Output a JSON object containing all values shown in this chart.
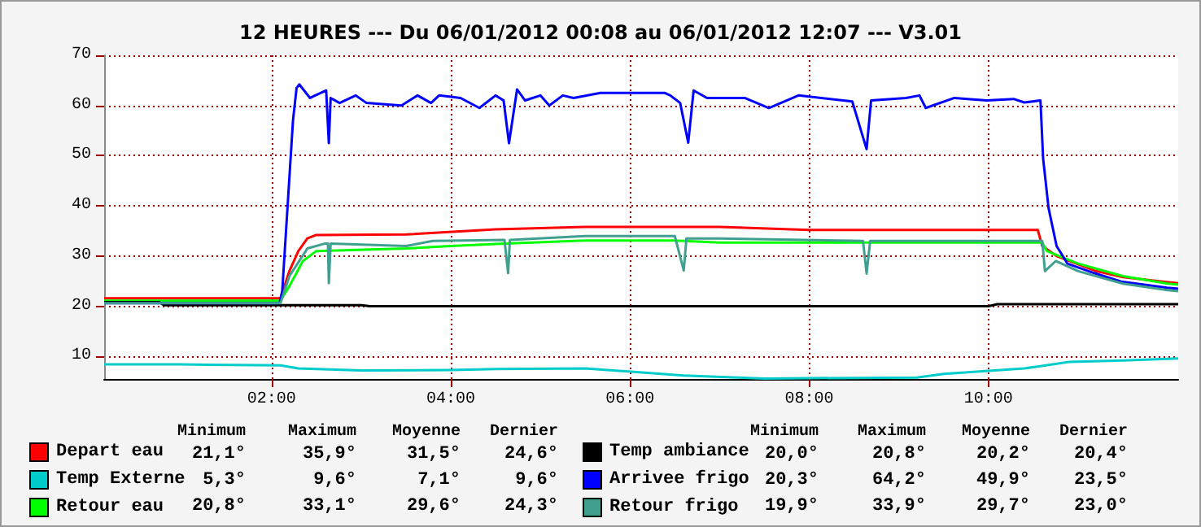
{
  "chart_data": {
    "type": "line",
    "title": "12 HEURES --- Du 06/01/2012 00:08 au 06/01/2012 12:07 --- V3.01",
    "xlim": [
      0.133,
      12.117
    ],
    "xticks": [
      {
        "value": 2,
        "label": "02:00"
      },
      {
        "value": 4,
        "label": "04:00"
      },
      {
        "value": 6,
        "label": "06:00"
      },
      {
        "value": 8,
        "label": "08:00"
      },
      {
        "value": 10,
        "label": "10:00"
      }
    ],
    "ylim": [
      5.5,
      70
    ],
    "yticks": [
      10,
      20,
      30,
      40,
      50,
      60,
      70
    ],
    "grid": true,
    "legend": "bottom",
    "marker": "none",
    "line_style": "solid",
    "series": [
      {
        "name": "Depart eau",
        "color": "#ff0000",
        "x": [
          0.133,
          2.1,
          2.2,
          2.3,
          2.4,
          2.5,
          3.5,
          4.5,
          5.5,
          7.0,
          8.0,
          10.55,
          10.6,
          10.76,
          11.2,
          11.5,
          12.0,
          12.117
        ],
        "values": [
          21.6,
          21.6,
          27,
          31,
          33.5,
          34.2,
          34.3,
          35.3,
          35.8,
          35.8,
          35.2,
          35.2,
          32,
          30,
          27,
          25.8,
          24.8,
          24.6
        ]
      },
      {
        "name": "Temp Externe",
        "color": "#00cccc",
        "x": [
          0.133,
          1.0,
          2.1,
          2.3,
          3.0,
          4.0,
          4.5,
          5.5,
          6.6,
          7.5,
          9.2,
          9.5,
          10.4,
          10.9,
          11.5,
          12.117
        ],
        "values": [
          8.4,
          8.4,
          8.2,
          7.6,
          7.2,
          7.3,
          7.5,
          7.6,
          6.2,
          5.6,
          5.8,
          6.5,
          7.6,
          8.9,
          9.2,
          9.6
        ]
      },
      {
        "name": "Retour eau",
        "color": "#00ff00",
        "x": [
          0.133,
          2.1,
          2.2,
          2.35,
          2.5,
          3.5,
          4.0,
          4.6,
          5.5,
          6.5,
          7.0,
          10.6,
          10.65,
          11.0,
          11.5,
          12.0,
          12.117
        ],
        "values": [
          21.1,
          21.1,
          24,
          29,
          31,
          31.5,
          32,
          32.5,
          33.1,
          33.1,
          32.7,
          32.7,
          31,
          28.5,
          26,
          24.5,
          24.3
        ]
      },
      {
        "name": "Temp ambiance",
        "color": "#000000",
        "x": [
          0.133,
          0.75,
          0.8,
          3.0,
          3.1,
          10.0,
          10.1,
          12.117
        ],
        "values": [
          20.8,
          20.8,
          20.2,
          20.2,
          20.0,
          20.0,
          20.4,
          20.4
        ]
      },
      {
        "name": "Arrivee frigo",
        "color": "#0000ff",
        "x": [
          0.133,
          2.09,
          2.12,
          2.18,
          2.24,
          2.28,
          2.31,
          2.43,
          2.61,
          2.64,
          2.66,
          2.76,
          2.94,
          3.06,
          3.45,
          3.63,
          3.78,
          3.87,
          4.11,
          4.32,
          4.5,
          4.59,
          4.65,
          4.74,
          4.83,
          5.0,
          5.1,
          5.25,
          5.37,
          5.67,
          6.39,
          6.45,
          6.56,
          6.65,
          6.71,
          6.86,
          7.28,
          7.55,
          7.88,
          8.48,
          8.64,
          8.69,
          9.08,
          9.23,
          9.3,
          9.62,
          9.98,
          10.28,
          10.4,
          10.58,
          10.61,
          10.67,
          10.76,
          10.88,
          11.18,
          11.48,
          11.99,
          12.117
        ],
        "values": [
          20.6,
          20.6,
          23,
          40,
          57,
          63.5,
          64.2,
          61.5,
          63,
          52.5,
          61.5,
          60.5,
          62,
          60.5,
          60,
          62,
          60.5,
          62,
          61.5,
          59.5,
          62,
          61,
          52.5,
          63.2,
          61,
          62,
          60,
          62,
          61.5,
          62.5,
          62.5,
          62,
          60.5,
          52.6,
          63,
          61.5,
          61.5,
          59.5,
          62,
          60.8,
          51.3,
          61,
          61.5,
          62,
          59.5,
          61.5,
          61,
          61.3,
          60.6,
          61,
          49.4,
          39.6,
          32,
          28.5,
          26.6,
          24.9,
          23.7,
          23.5
        ]
      },
      {
        "name": "Retour frigo",
        "color": "#40a090",
        "x": [
          0.133,
          2.1,
          2.2,
          2.4,
          2.6,
          2.63,
          2.64,
          2.66,
          3.5,
          3.8,
          4.6,
          4.64,
          4.66,
          5.5,
          6.5,
          6.6,
          6.63,
          7.0,
          8.6,
          8.64,
          8.68,
          10.6,
          10.63,
          10.75,
          11.0,
          11.5,
          12.0,
          12.117
        ],
        "values": [
          20.6,
          20.6,
          26,
          31.5,
          32.5,
          32.5,
          24.6,
          32.5,
          32,
          33,
          33.2,
          26.6,
          33.2,
          34,
          34,
          27.1,
          33.5,
          33.5,
          33,
          26.5,
          33,
          33,
          27,
          29,
          27,
          24.5,
          23.2,
          23
        ]
      }
    ],
    "annotations": [
      "Minimum",
      "Maximum",
      "Moyenne",
      "Dernier",
      "Minimum",
      "Maximum",
      "Moyenne",
      "Dernier",
      "21,1°",
      "35,9°",
      "31,5°",
      "24,6°",
      "5,3°",
      "9,6°",
      "7,1°",
      "9,6°",
      "20,8°",
      "33,1°",
      "29,6°",
      "24,3°",
      "20,0°",
      "20,8°",
      "20,2°",
      "20,4°",
      "20,3°",
      "64,2°",
      "49,9°",
      "23,5°",
      "19,9°",
      "33,9°",
      "29,7°",
      "23,0°"
    ]
  }
}
